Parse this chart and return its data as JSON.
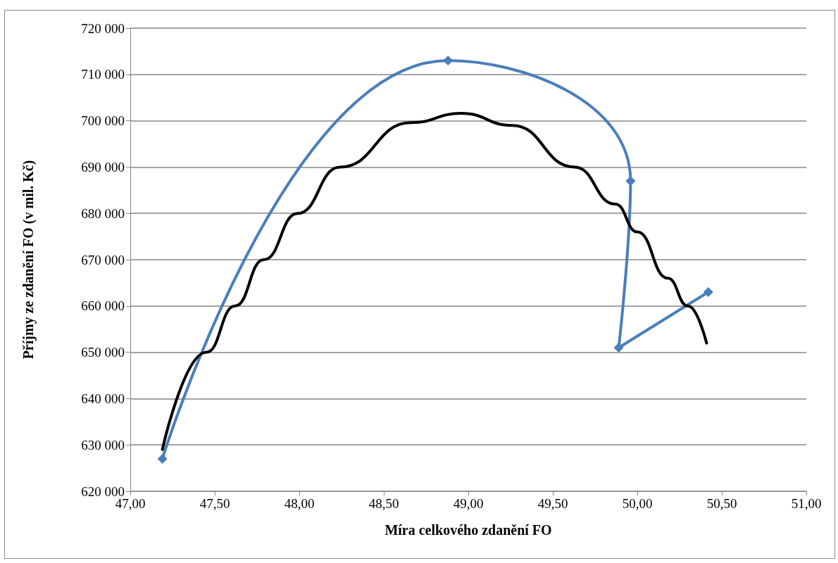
{
  "chart_data": {
    "type": "line",
    "xlabel": "Míra celkového zdanění FO",
    "ylabel": "Příjmy ze zdanění FO (v mil. Kč)",
    "xlim": [
      47,
      51
    ],
    "xticks": [
      {
        "value": 47,
        "label": "47,00"
      },
      {
        "value": 47.5,
        "label": "47,50"
      },
      {
        "value": 48,
        "label": "48,00"
      },
      {
        "value": 48.5,
        "label": "48,50"
      },
      {
        "value": 49,
        "label": "49,00"
      },
      {
        "value": 49.5,
        "label": "49,50"
      },
      {
        "value": 50,
        "label": "50,00"
      },
      {
        "value": 50.5,
        "label": "50,50"
      },
      {
        "value": 51,
        "label": "51,00"
      }
    ],
    "ylim": [
      620000,
      720000
    ],
    "yticks": [
      {
        "value": 620000,
        "label": "620 000"
      },
      {
        "value": 630000,
        "label": "630 000"
      },
      {
        "value": 640000,
        "label": "640 000"
      },
      {
        "value": 650000,
        "label": "650 000"
      },
      {
        "value": 660000,
        "label": "660 000"
      },
      {
        "value": 670000,
        "label": "670 000"
      },
      {
        "value": 680000,
        "label": "680 000"
      },
      {
        "value": 690000,
        "label": "690 000"
      },
      {
        "value": 700000,
        "label": "700 000"
      },
      {
        "value": 710000,
        "label": "710 000"
      },
      {
        "value": 720000,
        "label": "720 000"
      }
    ],
    "grid": "y",
    "series": [
      {
        "color": "#4a7ebb",
        "marker": "diamond",
        "line_style": "solid",
        "x": [
          47.19,
          48.88,
          49.96,
          49.89,
          50.42
        ],
        "values": [
          627000,
          713000,
          687000,
          651000,
          663000
        ]
      },
      {
        "color": "#000000",
        "marker": "none",
        "line_style": "solid",
        "x": [
          47.19,
          47.45,
          47.62,
          47.79,
          47.99,
          48.24,
          48.66,
          48.96,
          49.26,
          49.63,
          49.87,
          50.0,
          50.18,
          50.3,
          50.41
        ],
        "values": [
          629000,
          650000,
          660000,
          670000,
          680000,
          690000,
          699600,
          701600,
          699000,
          690000,
          682000,
          676000,
          666000,
          660000,
          652000
        ]
      }
    ]
  }
}
